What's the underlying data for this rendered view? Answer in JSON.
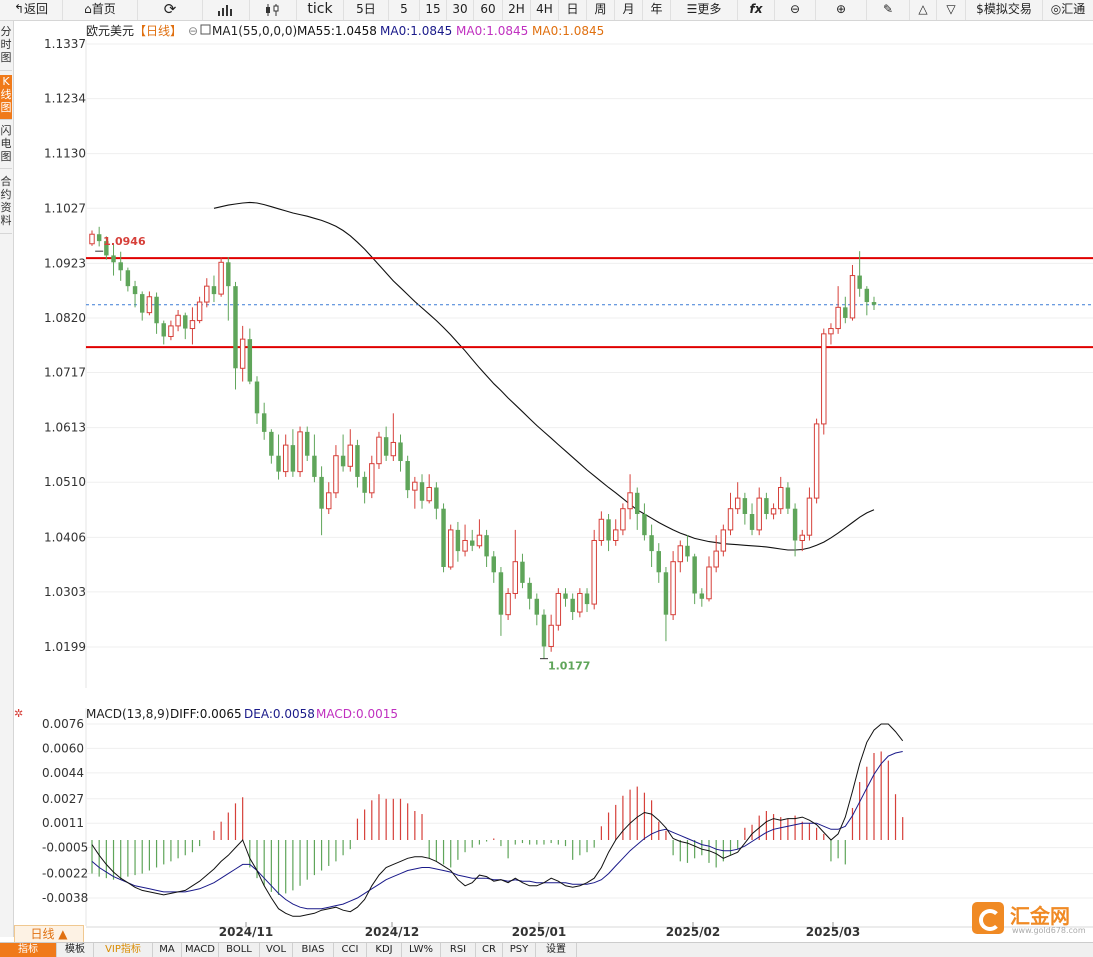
{
  "toolbar": {
    "back": "返回",
    "home": "首页",
    "tick": "tick",
    "periods": [
      "5日",
      "5",
      "15",
      "30",
      "60",
      "2H",
      "4H",
      "日",
      "周",
      "月",
      "年"
    ],
    "more": "更多",
    "fx": "fx",
    "sim": "模拟交易",
    "huitong": "汇通"
  },
  "left_tabs": [
    "分时图",
    "K线图",
    "闪电图",
    "合约资料"
  ],
  "main_legend": {
    "name": "欧元美元",
    "period": "【日线】",
    "ma_title": "MA1(55,0,0,0)",
    "ma55": "MA55:1.0458",
    "ma0a": "MA0:1.0845",
    "ma0b": "MA0:1.0845",
    "ma0c": "MA0:1.0845"
  },
  "macd_legend": {
    "title": "MACD(13,8,9)",
    "diff": "DIFF:0.0065",
    "dea": "DEA:0.0058",
    "macd": "MACD:0.0015"
  },
  "colors": {
    "up": "#d6403a",
    "down": "#5fa55a",
    "ma55": "#111111",
    "diff": "#111111",
    "dea": "#1a1a8a",
    "hline": "#e00000",
    "accent": "#f07a1a"
  },
  "bottom": {
    "dayline": "日线 ▲",
    "tabs": [
      "指标",
      "模板",
      "VIP指标",
      "MA",
      "MACD",
      "BOLL",
      "VOL",
      "BIAS",
      "CCI",
      "KDJ",
      "LW%",
      "RSI",
      "CR",
      "PSY",
      "设置"
    ]
  },
  "logo": {
    "name": "汇金网",
    "url": "www.gold678.com"
  },
  "chart_data": [
    {
      "type": "candlestick",
      "title": "欧元美元",
      "period": "日线",
      "y_ticks": [
        1.1337,
        1.1234,
        1.113,
        1.1027,
        1.0923,
        1.082,
        1.0717,
        1.0613,
        1.051,
        1.0406,
        1.0303,
        1.0199
      ],
      "x_ticks": [
        "2024/11",
        "2024/12",
        "2025/01",
        "2025/02",
        "2025/03"
      ],
      "ylim": [
        1.015,
        1.138
      ],
      "annotations": [
        {
          "label": "1.0946",
          "value": 1.0946,
          "kind": "high"
        },
        {
          "label": "1.0177",
          "value": 1.0177,
          "kind": "low"
        }
      ],
      "hlines": [
        1.0933,
        1.0765
      ],
      "last_price": 1.0845,
      "candles": [
        [
          1.096,
          1.0978,
          1.0985,
          1.0956
        ],
        [
          1.0978,
          1.0965,
          1.0992,
          1.0955
        ],
        [
          1.0965,
          1.0938,
          1.0974,
          1.093
        ],
        [
          1.0938,
          1.0925,
          1.096,
          1.09
        ],
        [
          1.0925,
          1.091,
          1.0945,
          1.089
        ],
        [
          1.091,
          1.088,
          1.0915,
          1.087
        ],
        [
          1.088,
          1.0865,
          1.089,
          1.084
        ],
        [
          1.0865,
          1.083,
          1.087,
          1.0815
        ],
        [
          1.083,
          1.086,
          1.087,
          1.0825
        ],
        [
          1.086,
          1.081,
          1.0868,
          1.079
        ],
        [
          1.081,
          1.0785,
          1.0815,
          1.077
        ],
        [
          1.0785,
          1.0805,
          1.0815,
          1.0778
        ],
        [
          1.0805,
          1.0825,
          1.0835,
          1.0795
        ],
        [
          1.0825,
          1.08,
          1.083,
          1.078
        ],
        [
          1.08,
          1.0815,
          1.084,
          1.077
        ],
        [
          1.0815,
          1.085,
          1.086,
          1.081
        ],
        [
          1.085,
          1.088,
          1.0895,
          1.084
        ],
        [
          1.088,
          1.0865,
          1.09,
          1.085
        ],
        [
          1.0865,
          1.0925,
          1.0935,
          1.086
        ],
        [
          1.0925,
          1.088,
          1.0935,
          1.0815
        ],
        [
          1.088,
          1.0725,
          1.0888,
          1.0685
        ],
        [
          1.0725,
          1.078,
          1.0805,
          1.07
        ],
        [
          1.078,
          1.07,
          1.08,
          1.0695
        ],
        [
          1.07,
          1.064,
          1.071,
          1.062
        ],
        [
          1.064,
          1.0605,
          1.066,
          1.059
        ],
        [
          1.0605,
          1.056,
          1.061,
          1.0545
        ],
        [
          1.056,
          1.053,
          1.06,
          1.0515
        ],
        [
          1.053,
          1.058,
          1.06,
          1.052
        ],
        [
          1.058,
          1.053,
          1.061,
          1.052
        ],
        [
          1.053,
          1.0605,
          1.0615,
          1.052
        ],
        [
          1.0605,
          1.056,
          1.0615,
          1.055
        ],
        [
          1.056,
          1.052,
          1.06,
          1.051
        ],
        [
          1.052,
          1.046,
          1.054,
          1.041
        ],
        [
          1.046,
          1.049,
          1.051,
          1.045
        ],
        [
          1.049,
          1.056,
          1.058,
          1.048
        ],
        [
          1.056,
          1.054,
          1.06,
          1.053
        ],
        [
          1.054,
          1.058,
          1.061,
          1.053
        ],
        [
          1.058,
          1.052,
          1.059,
          1.05
        ],
        [
          1.052,
          1.049,
          1.053,
          1.047
        ],
        [
          1.049,
          1.0545,
          1.056,
          1.048
        ],
        [
          1.0545,
          1.0595,
          1.0605,
          1.0535
        ],
        [
          1.0595,
          1.056,
          1.0615,
          1.055
        ],
        [
          1.056,
          1.0585,
          1.064,
          1.055
        ],
        [
          1.0585,
          1.055,
          1.06,
          1.053
        ],
        [
          1.055,
          1.0495,
          1.056,
          1.048
        ],
        [
          1.0495,
          1.051,
          1.052,
          1.046
        ],
        [
          1.051,
          1.0475,
          1.0525,
          1.046
        ],
        [
          1.0475,
          1.05,
          1.0525,
          1.047
        ],
        [
          1.05,
          1.046,
          1.051,
          1.044
        ],
        [
          1.046,
          1.035,
          1.047,
          1.034
        ],
        [
          1.035,
          1.042,
          1.043,
          1.0345
        ],
        [
          1.042,
          1.038,
          1.0435,
          1.036
        ],
        [
          1.038,
          1.04,
          1.043,
          1.037
        ],
        [
          1.04,
          1.039,
          1.042,
          1.038
        ],
        [
          1.039,
          1.041,
          1.044,
          1.0385
        ],
        [
          1.041,
          1.037,
          1.042,
          1.035
        ],
        [
          1.037,
          1.034,
          1.038,
          1.032
        ],
        [
          1.034,
          1.026,
          1.035,
          1.022
        ],
        [
          1.026,
          1.03,
          1.031,
          1.025
        ],
        [
          1.03,
          1.036,
          1.042,
          1.029
        ],
        [
          1.036,
          1.032,
          1.0375,
          1.031
        ],
        [
          1.032,
          1.029,
          1.033,
          1.027
        ],
        [
          1.029,
          1.026,
          1.03,
          1.024
        ],
        [
          1.026,
          1.02,
          1.027,
          1.0177
        ],
        [
          1.02,
          1.024,
          1.026,
          1.019
        ],
        [
          1.024,
          1.03,
          1.031,
          1.023
        ],
        [
          1.03,
          1.029,
          1.031,
          1.0275
        ],
        [
          1.029,
          1.0265,
          1.03,
          1.025
        ],
        [
          1.0265,
          1.03,
          1.031,
          1.0255
        ],
        [
          1.03,
          1.028,
          1.031,
          1.0265
        ],
        [
          1.028,
          1.04,
          1.042,
          1.027
        ],
        [
          1.04,
          1.044,
          1.0455,
          1.039
        ],
        [
          1.044,
          1.04,
          1.045,
          1.038
        ],
        [
          1.04,
          1.042,
          1.044,
          1.039
        ],
        [
          1.042,
          1.046,
          1.047,
          1.041
        ],
        [
          1.046,
          1.049,
          1.0525,
          1.044
        ],
        [
          1.049,
          1.045,
          1.05,
          1.042
        ],
        [
          1.045,
          1.041,
          1.047,
          1.04
        ],
        [
          1.041,
          1.038,
          1.043,
          1.035
        ],
        [
          1.038,
          1.034,
          1.0395,
          1.032
        ],
        [
          1.034,
          1.026,
          1.035,
          1.021
        ],
        [
          1.026,
          1.036,
          1.038,
          1.025
        ],
        [
          1.036,
          1.039,
          1.04,
          1.034
        ],
        [
          1.039,
          1.037,
          1.041,
          1.036
        ],
        [
          1.037,
          1.03,
          1.0375,
          1.028
        ],
        [
          1.03,
          1.029,
          1.031,
          1.0275
        ],
        [
          1.029,
          1.035,
          1.037,
          1.0285
        ],
        [
          1.035,
          1.038,
          1.041,
          1.034
        ],
        [
          1.038,
          1.042,
          1.043,
          1.037
        ],
        [
          1.042,
          1.046,
          1.049,
          1.041
        ],
        [
          1.046,
          1.048,
          1.051,
          1.045
        ],
        [
          1.048,
          1.045,
          1.049,
          1.043
        ],
        [
          1.045,
          1.042,
          1.047,
          1.041
        ],
        [
          1.042,
          1.048,
          1.05,
          1.041
        ],
        [
          1.048,
          1.045,
          1.049,
          1.044
        ],
        [
          1.045,
          1.046,
          1.047,
          1.044
        ],
        [
          1.046,
          1.05,
          1.052,
          1.045
        ],
        [
          1.05,
          1.046,
          1.051,
          1.045
        ],
        [
          1.046,
          1.04,
          1.047,
          1.037
        ],
        [
          1.04,
          1.041,
          1.042,
          1.038
        ],
        [
          1.041,
          1.048,
          1.05,
          1.04
        ],
        [
          1.048,
          1.062,
          1.063,
          1.047
        ],
        [
          1.062,
          1.079,
          1.08,
          1.06
        ],
        [
          1.079,
          1.08,
          1.081,
          1.077
        ],
        [
          1.08,
          1.084,
          1.088,
          1.079
        ],
        [
          1.084,
          1.082,
          1.086,
          1.081
        ],
        [
          1.082,
          1.09,
          1.092,
          1.0815
        ],
        [
          1.09,
          1.0875,
          1.0946,
          1.086
        ],
        [
          1.0875,
          1.085,
          1.088,
          1.0825
        ],
        [
          1.085,
          1.0845,
          1.086,
          1.0835
        ]
      ],
      "ma55_y": [
        1.1027,
        1.103,
        1.1033,
        1.1035,
        1.1037,
        1.1038,
        1.1037,
        1.1034,
        1.103,
        1.1026,
        1.1022,
        1.1018,
        1.1015,
        1.1012,
        1.1008,
        1.1004,
        1.0999,
        1.0993,
        1.0985,
        1.0975,
        1.0963,
        1.095,
        1.0935,
        1.092,
        1.0905,
        1.089,
        1.0877,
        1.0864,
        1.0851,
        1.0839,
        1.0827,
        1.0815,
        1.0802,
        1.0788,
        1.0773,
        1.0758,
        1.0742,
        1.0726,
        1.0711,
        1.0696,
        1.0683,
        1.0669,
        1.0656,
        1.0643,
        1.063,
        1.0617,
        1.0605,
        1.0593,
        1.0581,
        1.0569,
        1.0557,
        1.0545,
        1.0533,
        1.0522,
        1.0511,
        1.05,
        1.049,
        1.0479,
        1.0468,
        1.0458,
        1.045,
        1.0442,
        1.0434,
        1.0427,
        1.042,
        1.0414,
        1.0409,
        1.0404,
        1.0401,
        1.0398,
        1.0396,
        1.0394,
        1.0393,
        1.0392,
        1.0391,
        1.039,
        1.0389,
        1.0388,
        1.0386,
        1.0384,
        1.0382,
        1.0382,
        1.0383,
        1.0386,
        1.0391,
        1.0397,
        1.0405,
        1.0414,
        1.0424,
        1.0434,
        1.0444,
        1.0452,
        1.0458
      ]
    },
    {
      "type": "macd",
      "title": "MACD(13,8,9)",
      "y_ticks": [
        0.0076,
        0.006,
        0.0044,
        0.0027,
        0.0011,
        -0.0005,
        -0.0022,
        -0.0038
      ],
      "ylim": [
        -0.0055,
        0.0082
      ],
      "hist": [
        -0.0022,
        -0.0024,
        -0.0025,
        -0.0026,
        -0.0026,
        -0.0024,
        -0.0023,
        -0.0022,
        -0.002,
        -0.0018,
        -0.0016,
        -0.0014,
        -0.0012,
        -0.001,
        -0.0008,
        -0.0004,
        0.0,
        0.0006,
        0.0012,
        0.0018,
        0.0024,
        0.0028,
        -0.0018,
        -0.0025,
        -0.003,
        -0.0034,
        -0.0036,
        -0.0035,
        -0.0033,
        -0.003,
        -0.0026,
        -0.0023,
        -0.002,
        -0.0017,
        -0.0014,
        -0.001,
        -0.0006,
        0.0014,
        0.002,
        0.0026,
        0.003,
        0.0027,
        0.0027,
        0.0027,
        0.0024,
        0.0019,
        0.0017,
        -0.0012,
        -0.0014,
        -0.0016,
        -0.0018,
        -0.0013,
        -0.0008,
        -0.0005,
        -0.0003,
        -0.0001,
        0.0001,
        -0.0004,
        -0.0012,
        -0.0003,
        -0.0002,
        -0.0003,
        -0.0003,
        -0.0003,
        -0.0002,
        -0.0003,
        -0.0004,
        -0.0013,
        -0.001,
        -0.0008,
        -0.0005,
        0.0009,
        0.0018,
        0.0023,
        0.0029,
        0.0033,
        0.0035,
        0.0031,
        0.0026,
        0.0012,
        0.0006,
        -0.001,
        -0.0014,
        -0.0015,
        -0.0012,
        -0.001,
        -0.0015,
        -0.0018,
        -0.0014,
        -0.001,
        -0.0006,
        0.0008,
        0.001,
        0.0016,
        0.0019,
        0.0017,
        0.0015,
        0.0014,
        0.0016,
        0.0012,
        0.0011,
        0.0008,
        0.0004,
        -0.0014,
        -0.0012,
        -0.0016,
        0.0021,
        0.0038,
        0.0048,
        0.0057,
        0.0058,
        0.0052,
        0.003,
        0.0015
      ],
      "diff": [
        -0.0003,
        -0.001,
        -0.0016,
        -0.0021,
        -0.0025,
        -0.0028,
        -0.0031,
        -0.0033,
        -0.0034,
        -0.0035,
        -0.0036,
        -0.0035,
        -0.0034,
        -0.0033,
        -0.003,
        -0.0027,
        -0.0023,
        -0.0019,
        -0.0014,
        -0.001,
        -0.0005,
        0.0,
        -0.0012,
        -0.002,
        -0.003,
        -0.0038,
        -0.0045,
        -0.0048,
        -0.005,
        -0.005,
        -0.0049,
        -0.0048,
        -0.0046,
        -0.0045,
        -0.0044,
        -0.0046,
        -0.0047,
        -0.0044,
        -0.0039,
        -0.003,
        -0.0023,
        -0.0018,
        -0.0016,
        -0.0014,
        -0.0012,
        -0.0011,
        -0.0011,
        -0.0012,
        -0.0014,
        -0.0017,
        -0.002,
        -0.0026,
        -0.003,
        -0.0028,
        -0.0023,
        -0.0024,
        -0.0027,
        -0.0026,
        -0.0028,
        -0.0025,
        -0.0028,
        -0.003,
        -0.003,
        -0.0028,
        -0.0025,
        -0.0027,
        -0.003,
        -0.0031,
        -0.003,
        -0.0028,
        -0.0025,
        -0.0018,
        -0.0008,
        0.0,
        0.0006,
        0.0011,
        0.0015,
        0.0018,
        0.0017,
        0.0013,
        0.0008,
        0.0001,
        -0.0001,
        -0.0002,
        -0.0004,
        -0.0006,
        -0.0007,
        -0.0009,
        -0.0012,
        -0.001,
        -0.0008,
        -0.0002,
        0.0004,
        0.0008,
        0.0012,
        0.0014,
        0.0013,
        0.0014,
        0.0014,
        0.0015,
        0.0013,
        0.001,
        0.0005,
        0.0,
        0.0004,
        0.0015,
        0.0032,
        0.005,
        0.0064,
        0.0072,
        0.0076,
        0.0076,
        0.0071,
        0.0065
      ],
      "dea": [
        -0.0014,
        -0.0018,
        -0.0021,
        -0.0024,
        -0.0026,
        -0.0028,
        -0.003,
        -0.0031,
        -0.0032,
        -0.0033,
        -0.0034,
        -0.0034,
        -0.0034,
        -0.0034,
        -0.0033,
        -0.0032,
        -0.003,
        -0.0028,
        -0.0025,
        -0.0022,
        -0.0019,
        -0.0016,
        -0.0016,
        -0.002,
        -0.0025,
        -0.003,
        -0.0035,
        -0.0039,
        -0.0042,
        -0.0044,
        -0.0045,
        -0.0045,
        -0.0045,
        -0.0044,
        -0.0043,
        -0.0042,
        -0.004,
        -0.0038,
        -0.0035,
        -0.0032,
        -0.0029,
        -0.0026,
        -0.0024,
        -0.0022,
        -0.002,
        -0.0019,
        -0.0018,
        -0.0018,
        -0.0019,
        -0.002,
        -0.0021,
        -0.0023,
        -0.0024,
        -0.0025,
        -0.0025,
        -0.0025,
        -0.0026,
        -0.0026,
        -0.0027,
        -0.0026,
        -0.0027,
        -0.0027,
        -0.0028,
        -0.0028,
        -0.0028,
        -0.0028,
        -0.0028,
        -0.0029,
        -0.0029,
        -0.0029,
        -0.0028,
        -0.0026,
        -0.0022,
        -0.0017,
        -0.0012,
        -0.0007,
        -0.0003,
        0.0001,
        0.0004,
        0.0006,
        0.0007,
        0.0005,
        0.0003,
        0.0001,
        -0.0001,
        -0.0003,
        -0.0004,
        -0.0006,
        -0.0007,
        -0.0007,
        -0.0006,
        -0.0004,
        -0.0001,
        0.0002,
        0.0005,
        0.0007,
        0.0008,
        0.0009,
        0.001,
        0.0011,
        0.0011,
        0.0011,
        0.0009,
        0.0007,
        0.0007,
        0.0009,
        0.0016,
        0.0025,
        0.0034,
        0.0043,
        0.005,
        0.0055,
        0.0057,
        0.0058
      ]
    }
  ]
}
